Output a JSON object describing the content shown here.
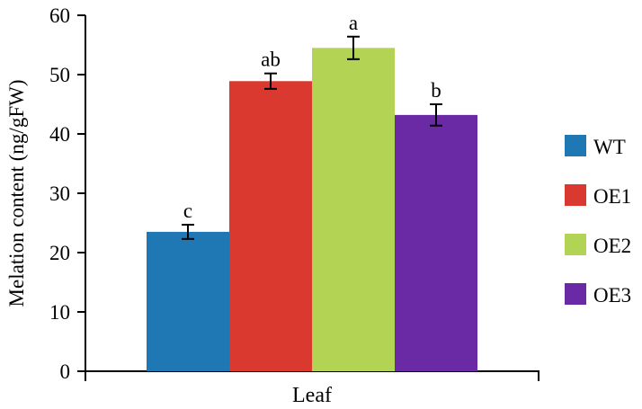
{
  "chart_data": {
    "type": "bar",
    "xlabel": "Leaf",
    "ylabel": "Melation content (ng/gFW)",
    "ylim": [
      0,
      60
    ],
    "yticks": [
      0,
      10,
      20,
      30,
      40,
      50,
      60
    ],
    "categories": [
      "Leaf"
    ],
    "series": [
      {
        "name": "WT",
        "values": [
          23.5
        ],
        "error": [
          1.2
        ],
        "label": "c",
        "color": "#1f77b4"
      },
      {
        "name": "OE1",
        "values": [
          48.9
        ],
        "error": [
          1.3
        ],
        "label": "ab",
        "color": "#d9392f"
      },
      {
        "name": "OE2",
        "values": [
          54.5
        ],
        "error": [
          1.9
        ],
        "label": "a",
        "color": "#b3d354"
      },
      {
        "name": "OE3",
        "values": [
          43.2
        ],
        "error": [
          1.8
        ],
        "label": "b",
        "color": "#6a2aa6"
      }
    ],
    "legend_position": "right",
    "grid": false
  }
}
